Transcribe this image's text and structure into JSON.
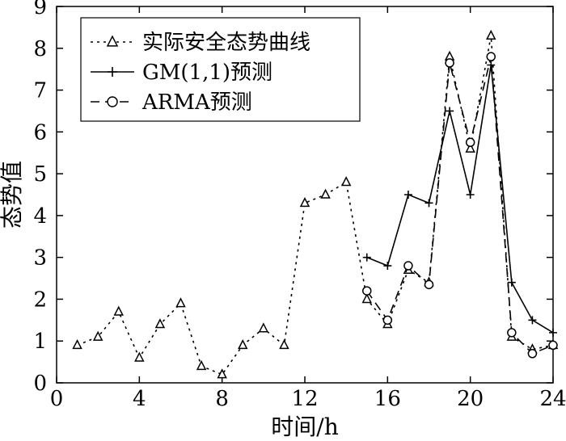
{
  "chart_data": {
    "type": "line",
    "title": "",
    "xlabel": "时间/h",
    "ylabel": "态势值",
    "xlim": [
      0,
      24
    ],
    "ylim": [
      0,
      9
    ],
    "xticks": [
      0,
      4,
      8,
      12,
      16,
      20,
      24
    ],
    "yticks": [
      0,
      1,
      2,
      3,
      4,
      5,
      6,
      7,
      8,
      9
    ],
    "grid": false,
    "legend_position": "top-left",
    "series": [
      {
        "name": "实际安全态势曲线",
        "style": "dotted",
        "marker": "triangle",
        "color": "#000000",
        "x": [
          1,
          2,
          3,
          4,
          5,
          6,
          7,
          8,
          9,
          10,
          11,
          12,
          13,
          14,
          15,
          16,
          17,
          18,
          19,
          20,
          21,
          22,
          23,
          24
        ],
        "y": [
          0.9,
          1.1,
          1.7,
          0.6,
          1.4,
          1.9,
          0.4,
          0.2,
          0.9,
          1.3,
          0.9,
          4.3,
          4.5,
          4.8,
          2.0,
          1.4,
          2.7,
          2.4,
          7.8,
          5.6,
          8.3,
          1.1,
          0.8,
          0.9
        ]
      },
      {
        "name": "GM(1,1)预测",
        "style": "solid",
        "marker": "plus",
        "color": "#000000",
        "x": [
          15,
          16,
          17,
          18,
          19,
          20,
          21,
          22,
          23,
          24
        ],
        "y": [
          3.0,
          2.8,
          4.5,
          4.3,
          6.5,
          4.5,
          7.6,
          2.4,
          1.5,
          1.2
        ]
      },
      {
        "name": "ARMA预测",
        "style": "dashed",
        "marker": "circle",
        "color": "#000000",
        "x": [
          15,
          16,
          17,
          18,
          19,
          20,
          21,
          22,
          23,
          24
        ],
        "y": [
          2.2,
          1.5,
          2.8,
          2.35,
          7.65,
          5.75,
          7.8,
          1.2,
          0.7,
          0.9
        ]
      }
    ]
  }
}
